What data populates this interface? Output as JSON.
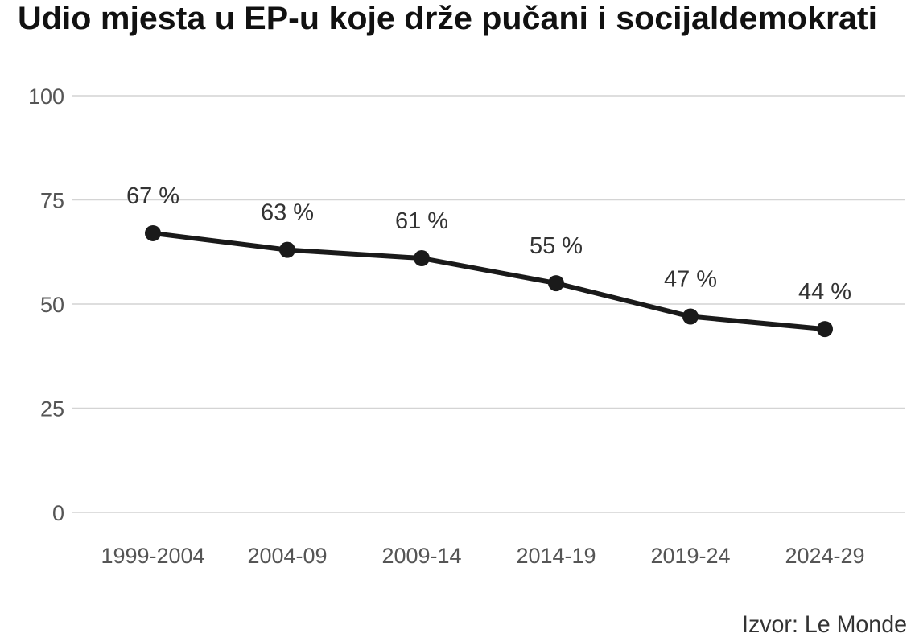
{
  "chart_data": {
    "type": "line",
    "title": "Udio mjesta u EP-u koje drže pučani i socijaldemokrati",
    "xlabel": "",
    "ylabel": "",
    "categories": [
      "1999-2004",
      "2004-09",
      "2009-14",
      "2014-19",
      "2019-24",
      "2024-29"
    ],
    "series": [
      {
        "name": "Udio mjesta",
        "values": [
          67,
          63,
          61,
          55,
          47,
          44
        ]
      }
    ],
    "data_labels": [
      "67 %",
      "63 %",
      "61 %",
      "55 %",
      "47 %",
      "44 %"
    ],
    "ylim": [
      0,
      100
    ],
    "yticks": [
      0,
      25,
      50,
      75,
      100
    ],
    "ytick_labels": [
      "0",
      "25",
      "50",
      "75",
      "100"
    ],
    "grid": true,
    "legend": "none",
    "source": "Izvor: Le Monde",
    "colors": {
      "line": "#1a1a1a",
      "grid": "#d4d4d4"
    }
  }
}
